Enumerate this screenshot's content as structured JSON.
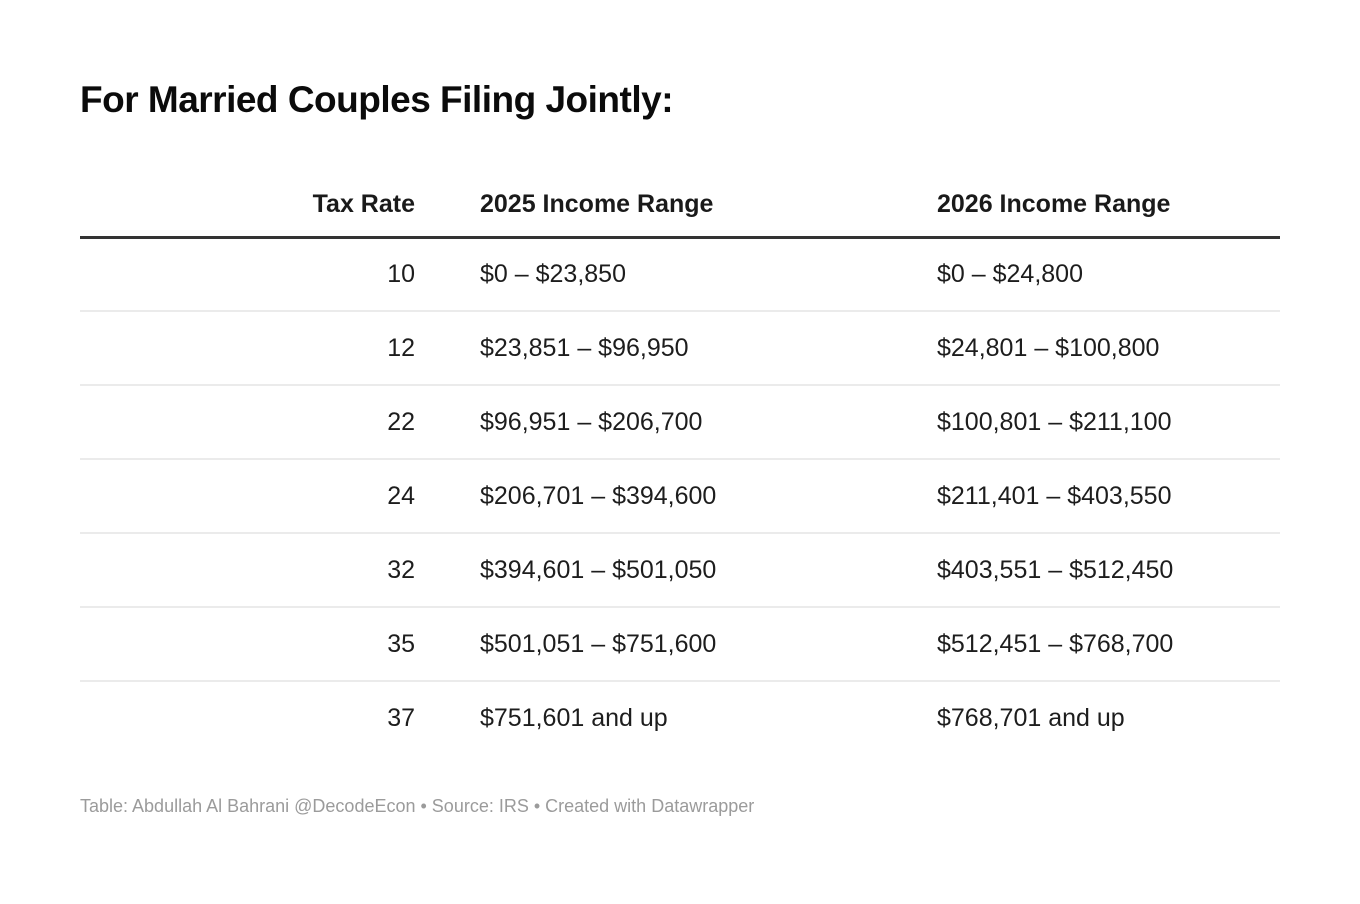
{
  "title": "For Married Couples Filing Jointly:",
  "chart_data": {
    "type": "table",
    "title": "For Married Couples Filing Jointly:",
    "columns": [
      "Tax Rate",
      "2025 Income Range",
      "2026 Income Range"
    ],
    "rows": [
      [
        "10",
        "$0 – $23,850",
        "$0 – $24,800"
      ],
      [
        "12",
        "$23,851 – $96,950",
        "$24,801 – $100,800"
      ],
      [
        "22",
        "$96,951 – $206,700",
        "$100,801 – $211,100"
      ],
      [
        "24",
        "$206,701 – $394,600",
        "$211,401 – $403,550"
      ],
      [
        "32",
        "$394,601 – $501,050",
        "$403,551 – $512,450"
      ],
      [
        "35",
        "$501,051 – $751,600",
        "$512,451 – $768,700"
      ],
      [
        "37",
        "$751,601 and up",
        "$768,701 and up"
      ]
    ],
    "layout_hints": {
      "tax_rate_alignment": "right",
      "income_columns_alignment": "left",
      "header_border": "thick-dark",
      "row_separators": "light-gray"
    }
  },
  "footer": "Table: Abdullah Al Bahrani @DecodeEcon • Source: IRS • Created with Datawrapper",
  "colors": {
    "background": "#ffffff",
    "title_text": "#0b0b0b",
    "header_text": "#1a1a1a",
    "body_text": "#1d1d1d",
    "header_border": "#333333",
    "row_separator": "#ebebeb",
    "footer_text": "#9b9b9b"
  }
}
